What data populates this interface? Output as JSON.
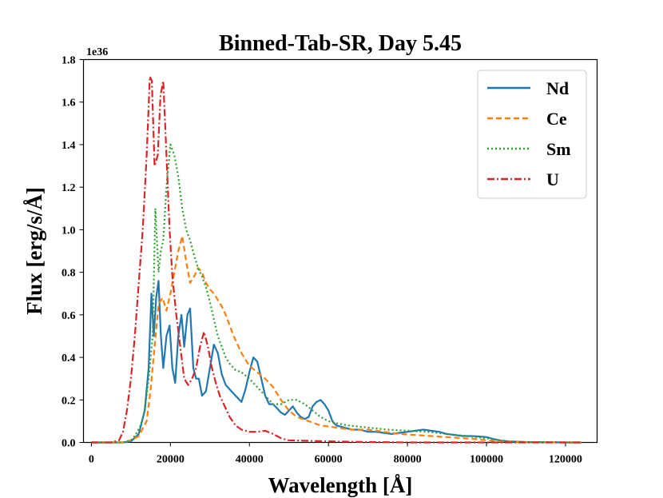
{
  "chart_data": {
    "type": "line",
    "title": "Binned-Tab-SR, Day 5.45",
    "xlabel": "Wavelength [Å]",
    "ylabel": "Flux [erg/s/Å]",
    "y_offset_label": "1e36",
    "xlim": [
      -2000,
      128000
    ],
    "ylim": [
      0,
      1.8
    ],
    "xticks": [
      0,
      20000,
      40000,
      60000,
      80000,
      100000,
      120000
    ],
    "xtick_labels": [
      "0",
      "20000",
      "40000",
      "60000",
      "80000",
      "100000",
      "120000"
    ],
    "yticks": [
      0.0,
      0.2,
      0.4,
      0.6,
      0.8,
      1.0,
      1.2,
      1.4,
      1.6,
      1.8
    ],
    "ytick_labels": [
      "0.0",
      "0.2",
      "0.4",
      "0.6",
      "0.8",
      "1.0",
      "1.2",
      "1.4",
      "1.6",
      "1.8"
    ],
    "legend_position": "top-right",
    "grid": false,
    "series": [
      {
        "name": "Nd",
        "color": "#1f77b4",
        "style": "solid",
        "x": [
          0,
          8000,
          10000,
          12000,
          13500,
          14500,
          15200,
          15800,
          16400,
          17000,
          17600,
          18200,
          19000,
          19800,
          20500,
          21200,
          22000,
          22800,
          23500,
          24300,
          25000,
          25800,
          26500,
          27200,
          28000,
          29000,
          30000,
          31000,
          32000,
          33000,
          34000,
          35000,
          36500,
          38000,
          39000,
          40000,
          41000,
          42000,
          43000,
          44000,
          45000,
          46000,
          47000,
          48000,
          49000,
          50000,
          51000,
          52000,
          53000,
          54000,
          55000,
          56000,
          57000,
          58000,
          59000,
          60000,
          61000,
          62000,
          64000,
          66000,
          68000,
          70000,
          72000,
          74000,
          76000,
          78000,
          80000,
          82000,
          84000,
          86000,
          88000,
          90000,
          92000,
          94000,
          96000,
          98000,
          100000,
          102000,
          104000,
          106000,
          110000,
          115000,
          120000,
          124000
        ],
        "y": [
          0,
          0,
          0.005,
          0.04,
          0.15,
          0.35,
          0.7,
          0.5,
          0.68,
          0.76,
          0.5,
          0.35,
          0.5,
          0.55,
          0.35,
          0.28,
          0.5,
          0.6,
          0.45,
          0.6,
          0.63,
          0.35,
          0.3,
          0.3,
          0.22,
          0.24,
          0.35,
          0.46,
          0.42,
          0.32,
          0.27,
          0.25,
          0.22,
          0.19,
          0.25,
          0.33,
          0.4,
          0.38,
          0.3,
          0.22,
          0.18,
          0.18,
          0.16,
          0.14,
          0.13,
          0.15,
          0.17,
          0.14,
          0.12,
          0.11,
          0.12,
          0.17,
          0.19,
          0.2,
          0.18,
          0.15,
          0.1,
          0.08,
          0.07,
          0.06,
          0.06,
          0.05,
          0.05,
          0.045,
          0.04,
          0.045,
          0.05,
          0.055,
          0.06,
          0.055,
          0.05,
          0.04,
          0.035,
          0.03,
          0.03,
          0.028,
          0.025,
          0.015,
          0.008,
          0.004,
          0.002,
          0.001,
          0,
          0
        ]
      },
      {
        "name": "Ce",
        "color": "#ff7f0e",
        "style": "dashed",
        "x": [
          0,
          8000,
          10000,
          12000,
          14000,
          15000,
          16000,
          17000,
          18000,
          19000,
          20000,
          21000,
          22000,
          23000,
          24000,
          25000,
          26000,
          27000,
          28000,
          29000,
          30000,
          31000,
          32000,
          33000,
          34000,
          35000,
          36000,
          38000,
          40000,
          42000,
          44000,
          46000,
          48000,
          50000,
          52000,
          55000,
          58000,
          62000,
          66000,
          70000,
          74000,
          78000,
          82000,
          86000,
          90000,
          94000,
          98000,
          100000,
          102000,
          105000,
          110000,
          120000,
          124000
        ],
        "y": [
          0,
          0,
          0.01,
          0.03,
          0.1,
          0.25,
          0.45,
          0.65,
          0.68,
          0.62,
          0.7,
          0.8,
          0.9,
          0.97,
          0.85,
          0.75,
          0.78,
          0.82,
          0.8,
          0.75,
          0.72,
          0.7,
          0.67,
          0.64,
          0.6,
          0.55,
          0.5,
          0.42,
          0.36,
          0.33,
          0.3,
          0.26,
          0.2,
          0.15,
          0.12,
          0.1,
          0.08,
          0.07,
          0.06,
          0.06,
          0.05,
          0.04,
          0.035,
          0.03,
          0.025,
          0.02,
          0.015,
          0.01,
          0.006,
          0.003,
          0.001,
          0,
          0
        ]
      },
      {
        "name": "Sm",
        "color": "#2ca02c",
        "style": "dotted",
        "x": [
          0,
          8000,
          10000,
          11000,
          12500,
          13500,
          14500,
          15500,
          16200,
          17000,
          17600,
          18200,
          19000,
          20000,
          21000,
          22000,
          23000,
          24000,
          25000,
          26000,
          27000,
          28000,
          29000,
          30000,
          31000,
          32000,
          33000,
          34000,
          35000,
          36500,
          38000,
          40000,
          42000,
          44000,
          46000,
          48000,
          50000,
          52000,
          54000,
          56000,
          58000,
          60000,
          62000,
          65000,
          70000,
          75000,
          80000,
          85000,
          90000,
          95000,
          100000,
          103000,
          106000,
          110000,
          120000,
          124000
        ],
        "y": [
          0,
          0,
          0.01,
          0.03,
          0.08,
          0.15,
          0.3,
          0.5,
          1.1,
          0.8,
          0.9,
          0.95,
          1.2,
          1.4,
          1.35,
          1.25,
          1.1,
          1.0,
          0.95,
          0.88,
          0.82,
          0.78,
          0.73,
          0.66,
          0.58,
          0.5,
          0.45,
          0.4,
          0.37,
          0.34,
          0.33,
          0.3,
          0.26,
          0.22,
          0.18,
          0.18,
          0.2,
          0.2,
          0.18,
          0.15,
          0.12,
          0.1,
          0.09,
          0.08,
          0.07,
          0.06,
          0.055,
          0.05,
          0.04,
          0.03,
          0.02,
          0.01,
          0.005,
          0.002,
          0,
          0
        ]
      },
      {
        "name": "U",
        "color": "#d62728",
        "style": "dashdot",
        "x": [
          0,
          5000,
          7000,
          8000,
          9000,
          10000,
          11000,
          12000,
          13000,
          14000,
          14800,
          15300,
          16000,
          16800,
          17500,
          18200,
          19000,
          19800,
          20500,
          21500,
          22500,
          23500,
          24500,
          25500,
          26500,
          27500,
          28500,
          29500,
          30500,
          31500,
          32500,
          33500,
          35000,
          36500,
          38000,
          40000,
          42000,
          44000,
          46000,
          48000,
          50000,
          54000,
          58000,
          62000,
          66000,
          70000,
          75000,
          80000,
          90000,
          100000,
          110000,
          120000,
          124000
        ],
        "y": [
          0,
          0,
          0.01,
          0.05,
          0.15,
          0.3,
          0.5,
          0.75,
          1.0,
          1.35,
          1.72,
          1.7,
          1.3,
          1.35,
          1.63,
          1.7,
          1.35,
          1.0,
          0.78,
          0.6,
          0.45,
          0.3,
          0.27,
          0.3,
          0.35,
          0.45,
          0.52,
          0.45,
          0.35,
          0.28,
          0.22,
          0.18,
          0.12,
          0.08,
          0.06,
          0.05,
          0.05,
          0.055,
          0.04,
          0.02,
          0.01,
          0.008,
          0.006,
          0.004,
          0.003,
          0.002,
          0.001,
          0,
          0,
          0,
          0,
          0,
          0
        ]
      }
    ]
  }
}
